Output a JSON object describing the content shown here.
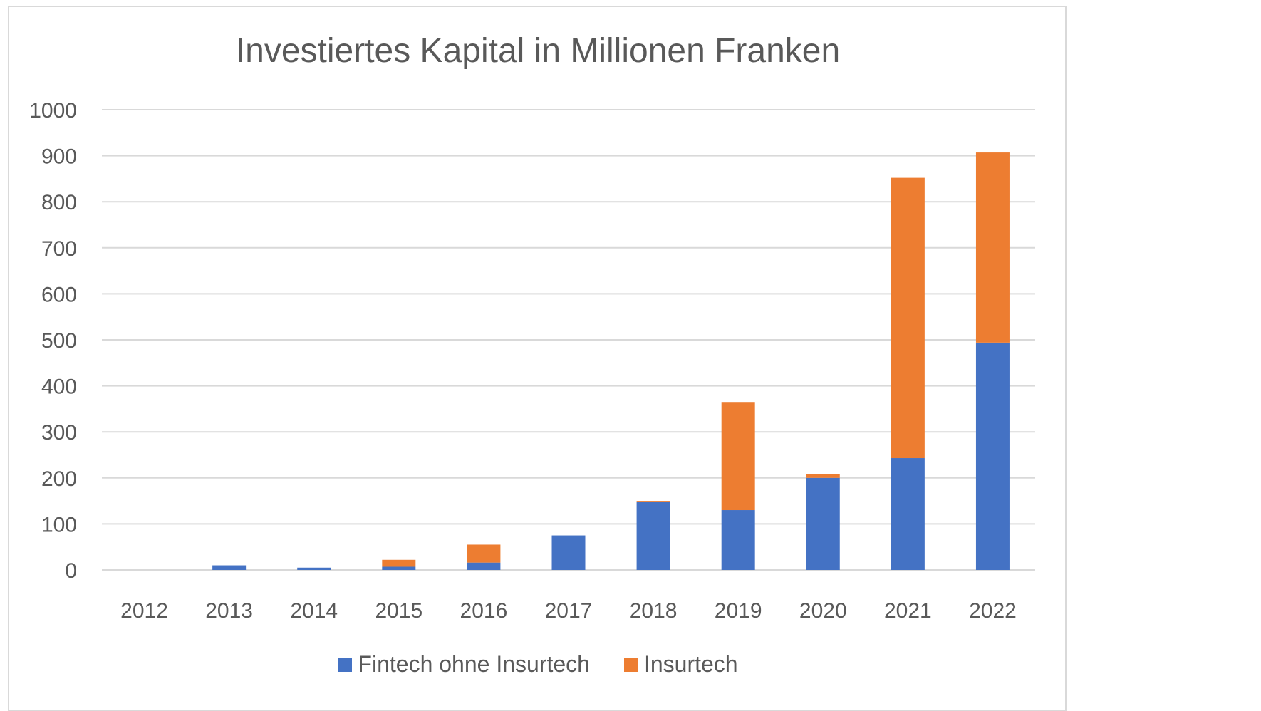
{
  "chart_data": {
    "type": "bar",
    "stacked": true,
    "title": "Investiertes Kapital in Millionen Franken",
    "xlabel": "",
    "ylabel": "",
    "categories": [
      "2012",
      "2013",
      "2014",
      "2015",
      "2016",
      "2017",
      "2018",
      "2019",
      "2020",
      "2021",
      "2022"
    ],
    "series": [
      {
        "name": "Fintech ohne Insurtech",
        "color": "#4472C4",
        "values": [
          0,
          10,
          5,
          7,
          16,
          75,
          148,
          130,
          200,
          243,
          494
        ]
      },
      {
        "name": "Insurtech",
        "color": "#ED7D31",
        "values": [
          0,
          0,
          0,
          15,
          39,
          0,
          2,
          235,
          8,
          609,
          413
        ]
      }
    ],
    "ylim": [
      0,
      1000
    ],
    "yticks": [
      0,
      100,
      200,
      300,
      400,
      500,
      600,
      700,
      800,
      900,
      1000
    ],
    "grid": true,
    "legend_position": "bottom"
  }
}
